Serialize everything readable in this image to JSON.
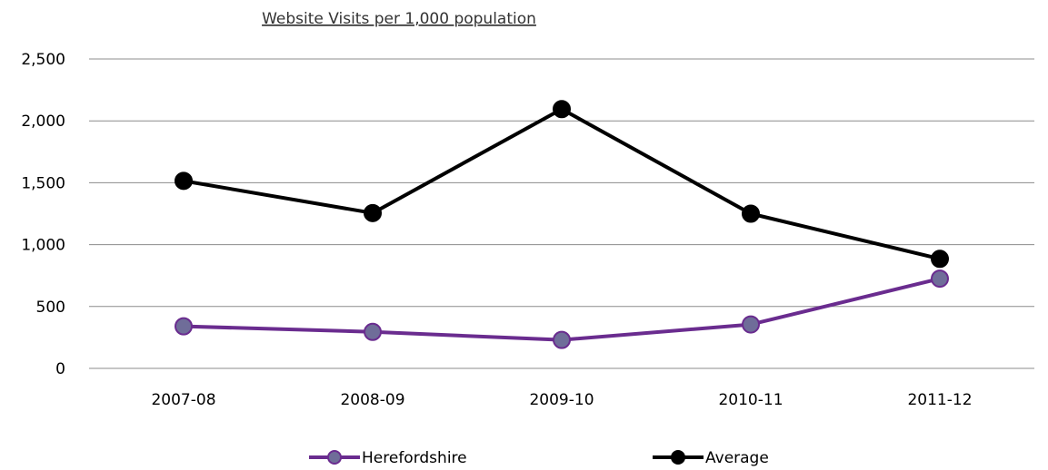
{
  "chart_data": {
    "type": "line",
    "title": "Website Visits per 1,000 population",
    "xlabel": "",
    "ylabel": "",
    "categories": [
      "2007-08",
      "2008-09",
      "2009-10",
      "2010-11",
      "2011-12"
    ],
    "ylim": [
      0,
      2500
    ],
    "yticks": [
      "0",
      "500",
      "1,000",
      "1,500",
      "2,000",
      "2,500"
    ],
    "grid": true,
    "legend_position": "bottom",
    "series": [
      {
        "name": "Herefordshire",
        "values": [
          340,
          295,
          230,
          355,
          725
        ],
        "color": "#6a2c8f",
        "marker_fill": "#6f6d99"
      },
      {
        "name": "Average",
        "values": [
          1515,
          1255,
          2095,
          1250,
          885
        ],
        "color": "#000000",
        "marker_fill": "#000000"
      }
    ]
  }
}
